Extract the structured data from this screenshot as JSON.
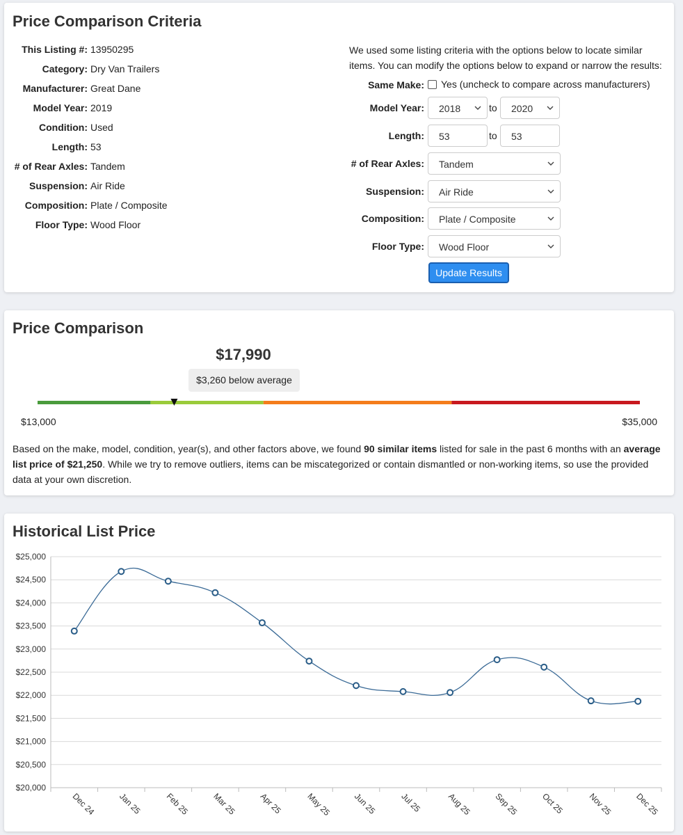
{
  "criteria": {
    "title": "Price Comparison Criteria",
    "listing": [
      {
        "label": "This Listing #:",
        "value": "13950295"
      },
      {
        "label": "Category:",
        "value": "Dry Van Trailers"
      },
      {
        "label": "Manufacturer:",
        "value": "Great Dane"
      },
      {
        "label": "Model Year:",
        "value": "2019"
      },
      {
        "label": "Condition:",
        "value": "Used"
      },
      {
        "label": "Length:",
        "value": "53"
      },
      {
        "label": "# of Rear Axles:",
        "value": "Tandem"
      },
      {
        "label": "Suspension:",
        "value": "Air Ride"
      },
      {
        "label": "Composition:",
        "value": "Plate / Composite"
      },
      {
        "label": "Floor Type:",
        "value": "Wood Floor"
      }
    ],
    "intro": "We used some listing criteria with the options below to locate similar items. You can modify the options below to expand or narrow the results:",
    "same_make": {
      "label": "Same Make:",
      "checked": false,
      "text": "Yes (uncheck to compare across manufacturers)"
    },
    "ranges": [
      {
        "label": "Model Year:",
        "from": "2018",
        "joiner": "to",
        "to": "2020",
        "select": true
      },
      {
        "label": "Length:",
        "from": "53",
        "joiner": "to",
        "to": "53",
        "select": false
      }
    ],
    "selects": [
      {
        "label": "# of Rear Axles:",
        "value": "Tandem"
      },
      {
        "label": "Suspension:",
        "value": "Air Ride"
      },
      {
        "label": "Composition:",
        "value": "Plate / Composite"
      },
      {
        "label": "Floor Type:",
        "value": "Wood Floor"
      }
    ],
    "button": "Update Results"
  },
  "comparison": {
    "title": "Price Comparison",
    "price": {
      "value": 17990,
      "label": "$17,990"
    },
    "badge": "$3,260 below average",
    "scale_min": {
      "value": 13000,
      "label": "$13,000"
    },
    "scale_max": {
      "value": 35000,
      "label": "$35,000"
    },
    "segments": [
      {
        "from": 13000,
        "to": 17125,
        "color": "#4a9b3c"
      },
      {
        "from": 17125,
        "to": 21250,
        "color": "#9acb3a"
      },
      {
        "from": 21250,
        "to": 28125,
        "color": "#f47d1b"
      },
      {
        "from": 28125,
        "to": 35000,
        "color": "#c8191f"
      }
    ],
    "summary": [
      {
        "text": "Based on the make, model, condition, year(s), and other factors above, we found ",
        "bold": false
      },
      {
        "text": "90 similar items",
        "bold": true
      },
      {
        "text": " listed for sale in the past 6 months with an ",
        "bold": false
      },
      {
        "text": "average list price of $21,250",
        "bold": true
      },
      {
        "text": ". While we try to remove outliers, items can be miscategorized or contain dismantled or non-working items, so use the provided data at your own discretion.",
        "bold": false
      }
    ]
  },
  "history": {
    "title": "Historical List Price",
    "chart_data": {
      "type": "line",
      "categories": [
        "Dec 24",
        "Jan 25",
        "Feb 25",
        "Mar 25",
        "Apr 25",
        "May 25",
        "Jun 25",
        "Jul 25",
        "Aug 25",
        "Sep 25",
        "Oct 25",
        "Nov 25",
        "Dec 25"
      ],
      "values": [
        23390,
        24680,
        24470,
        24220,
        23570,
        22740,
        22210,
        22080,
        22060,
        22770,
        22610,
        21880,
        21870
      ],
      "color": "#3a6a96",
      "ylim": [
        20000,
        25000
      ],
      "yticks": [
        {
          "value": 20000,
          "label": "$20,000"
        },
        {
          "value": 20500,
          "label": "$20,500"
        },
        {
          "value": 21000,
          "label": "$21,000"
        },
        {
          "value": 21500,
          "label": "$21,500"
        },
        {
          "value": 22000,
          "label": "$22,000"
        },
        {
          "value": 22500,
          "label": "$22,500"
        },
        {
          "value": 23000,
          "label": "$23,000"
        },
        {
          "value": 23500,
          "label": "$23,500"
        },
        {
          "value": 24000,
          "label": "$24,000"
        },
        {
          "value": 24500,
          "label": "$24,500"
        },
        {
          "value": 25000,
          "label": "$25,000"
        }
      ],
      "grid": true
    }
  }
}
